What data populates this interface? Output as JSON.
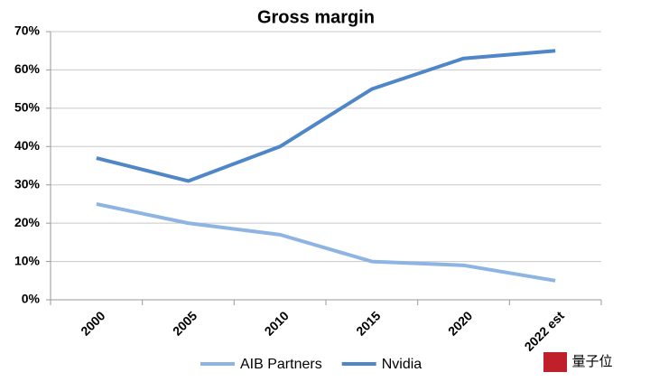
{
  "chart_data": {
    "type": "line",
    "title": "Gross margin",
    "categories": [
      "2000",
      "2005",
      "2010",
      "2015",
      "2020",
      "2022 est"
    ],
    "series": [
      {
        "name": "AIB Partners",
        "color": "#8db4e2",
        "values": [
          25,
          20,
          17,
          10,
          9,
          5
        ]
      },
      {
        "name": "Nvidia",
        "color": "#4f86c8",
        "values": [
          37,
          31,
          40,
          55,
          63,
          65
        ]
      }
    ],
    "ylim": [
      0,
      70
    ],
    "yticks": [
      {
        "value": 0,
        "label": "0%"
      },
      {
        "value": 10,
        "label": "10%"
      },
      {
        "value": 20,
        "label": "20%"
      },
      {
        "value": 30,
        "label": "30%"
      },
      {
        "value": 40,
        "label": "40%"
      },
      {
        "value": 50,
        "label": "50%"
      },
      {
        "value": 60,
        "label": "60%"
      },
      {
        "value": 70,
        "label": "70%"
      }
    ],
    "grid": true,
    "legend": "bottom",
    "watermark": "量子位"
  }
}
